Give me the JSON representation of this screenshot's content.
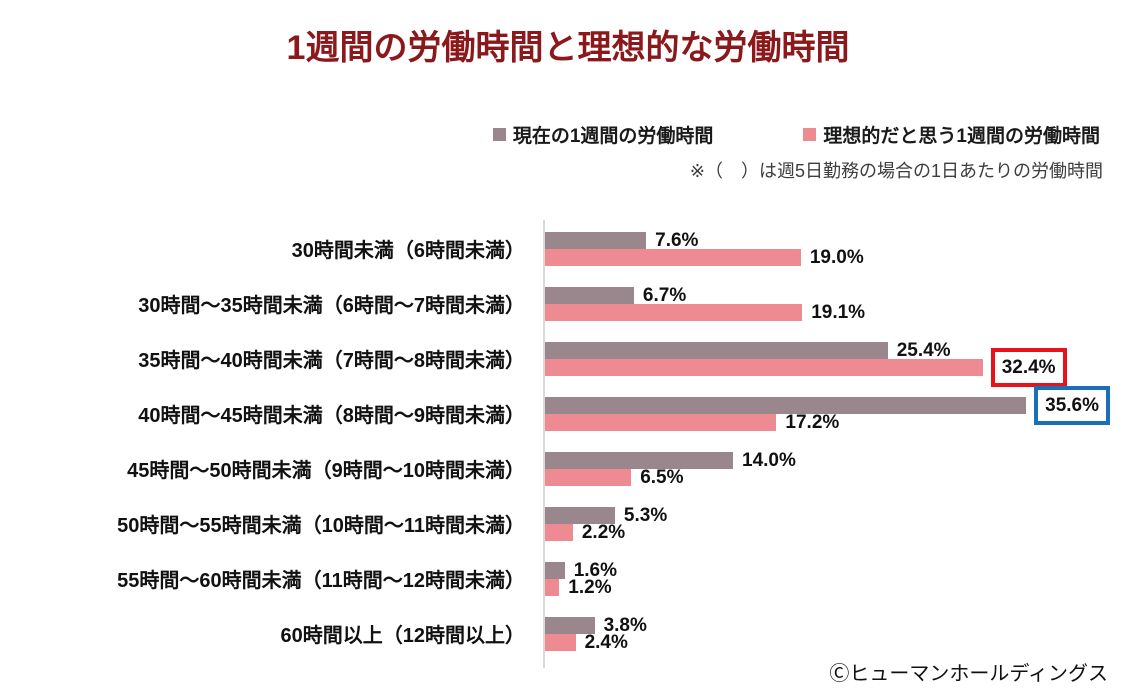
{
  "page": {
    "title": "1週間の労働時間と理想的な労働時間",
    "footer": "Ⓒヒューマンホールディングス"
  },
  "legend": {
    "series1_label": "現在の1週間の労働時間",
    "series2_label": "理想的だと思う1週間の労働時間",
    "note": "※（　）は週5日勤務の場合の1日あたりの労働時間"
  },
  "colors": {
    "title": "#8b181b",
    "series1": "#9a878d",
    "series2": "#ee8a92",
    "highlight_red": "#e81319",
    "highlight_blue": "#1a70b8",
    "axis_line": "#d9d9d9",
    "text": "#111111"
  },
  "chart_data": {
    "type": "bar",
    "orientation": "horizontal",
    "title": "1週間の労働時間と理想的な労働時間",
    "xlabel": "",
    "ylabel": "",
    "xlim": [
      0,
      42
    ],
    "grid": false,
    "legend_position": "top-right",
    "annotation": "※（　）は週5日勤務の場合の1日あたりの労働時間",
    "categories": [
      "30時間未満（6時間未満）",
      "30時間～35時間未満（6時間～7時間未満）",
      "35時間～40時間未満（7時間～8時間未満）",
      "40時間～45時間未満（8時間～9時間未満）",
      "45時間～50時間未満（9時間～10時間未満）",
      "50時間～55時間未満（10時間～11時間未満）",
      "55時間～60時間未満（11時間～12時間未満）",
      "60時間以上（12時間以上）"
    ],
    "series": [
      {
        "name": "現在の1週間の労働時間",
        "color_key": "series1",
        "values": [
          7.6,
          6.7,
          25.4,
          35.6,
          14.0,
          5.3,
          1.6,
          3.8
        ],
        "labels": [
          "7.6%",
          "6.7%",
          "25.4%",
          "35.6%",
          "14.0%",
          "5.3%",
          "1.6%",
          "3.8%"
        ]
      },
      {
        "name": "理想的だと思う1週間の労働時間",
        "color_key": "series2",
        "values": [
          19.0,
          19.1,
          32.4,
          17.2,
          6.5,
          2.2,
          1.2,
          2.4
        ],
        "labels": [
          "19.0%",
          "19.1%",
          "32.4%",
          "17.2%",
          "6.5%",
          "2.2%",
          "1.2%",
          "2.4%"
        ]
      }
    ],
    "highlights": [
      {
        "series": 1,
        "category": 2,
        "color": "red"
      },
      {
        "series": 0,
        "category": 3,
        "color": "blue"
      }
    ]
  }
}
